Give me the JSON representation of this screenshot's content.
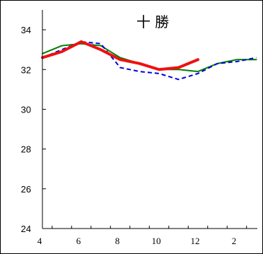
{
  "chart_data": {
    "type": "line",
    "title": "十 勝",
    "xlabel": "",
    "ylabel": "",
    "x_tick_labels": [
      "4",
      "6",
      "8",
      "10",
      "12",
      "2"
    ],
    "y_tick_labels": [
      "24",
      "26",
      "28",
      "30",
      "32",
      "34"
    ],
    "ylim": [
      24,
      35
    ],
    "grid": false,
    "legend": "none",
    "months": [
      4,
      5,
      6,
      7,
      8,
      9,
      10,
      11,
      12,
      1,
      2,
      3
    ],
    "series": [
      {
        "color": "#0000dd",
        "style": "dashed",
        "values": [
          32.6,
          33.0,
          33.4,
          33.3,
          32.1,
          31.9,
          31.8,
          31.5,
          31.8,
          32.3,
          32.4,
          32.6
        ]
      },
      {
        "color": "#008000",
        "style": "solid",
        "values": [
          32.8,
          33.2,
          33.3,
          33.2,
          32.6,
          32.3,
          32.0,
          32.0,
          31.9,
          32.3,
          32.5,
          32.5
        ]
      },
      {
        "color": "#ee1111",
        "style": "solid-thick",
        "values": [
          32.6,
          32.9,
          33.4,
          33.0,
          32.5,
          32.3,
          32.0,
          32.1,
          32.5
        ]
      }
    ]
  }
}
